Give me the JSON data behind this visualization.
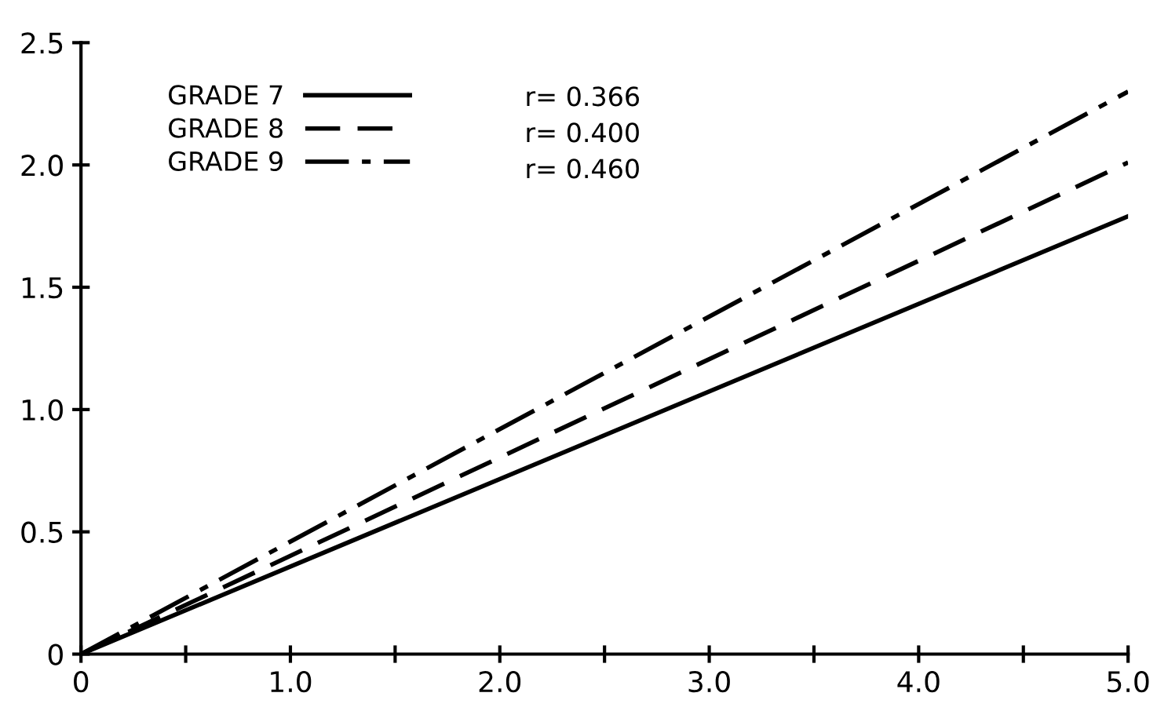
{
  "chart_data": {
    "type": "line",
    "x": [
      0,
      5.0
    ],
    "series": [
      {
        "name": "GRADE 7",
        "color": "#000000",
        "line_style": "solid",
        "values": [
          0,
          1.79
        ]
      },
      {
        "name": "GRADE 8",
        "color": "#000000",
        "line_style": "dashed",
        "values": [
          0,
          2.01
        ]
      },
      {
        "name": "GRADE 9",
        "color": "#000000",
        "line_style": "dashdot",
        "values": [
          0,
          2.3
        ]
      }
    ],
    "annotations": [
      "r= 0.366",
      "r= 0.400",
      "r= 0.460"
    ],
    "xlim": [
      0,
      5.0
    ],
    "ylim": [
      0,
      2.5
    ],
    "xticks": [
      0,
      {
        "value": 0.5,
        "label": null
      },
      {
        "value": 1.0,
        "label": "1.0"
      },
      {
        "value": 1.5,
        "label": null
      },
      {
        "value": 2.0,
        "label": "2.0"
      },
      {
        "value": 2.5,
        "label": null
      },
      {
        "value": 3.0,
        "label": "3.0"
      },
      {
        "value": 3.5,
        "label": null
      },
      {
        "value": 4.0,
        "label": "4.0"
      },
      {
        "value": 4.5,
        "label": null
      },
      {
        "value": 5.0,
        "label": "5.0"
      }
    ],
    "yticks": [
      0,
      0.5,
      {
        "value": 1.0,
        "label": "1.0"
      },
      1.5,
      {
        "value": 2.0,
        "label": "2.0"
      },
      2.5
    ],
    "grid": false,
    "legend": "top left"
  }
}
